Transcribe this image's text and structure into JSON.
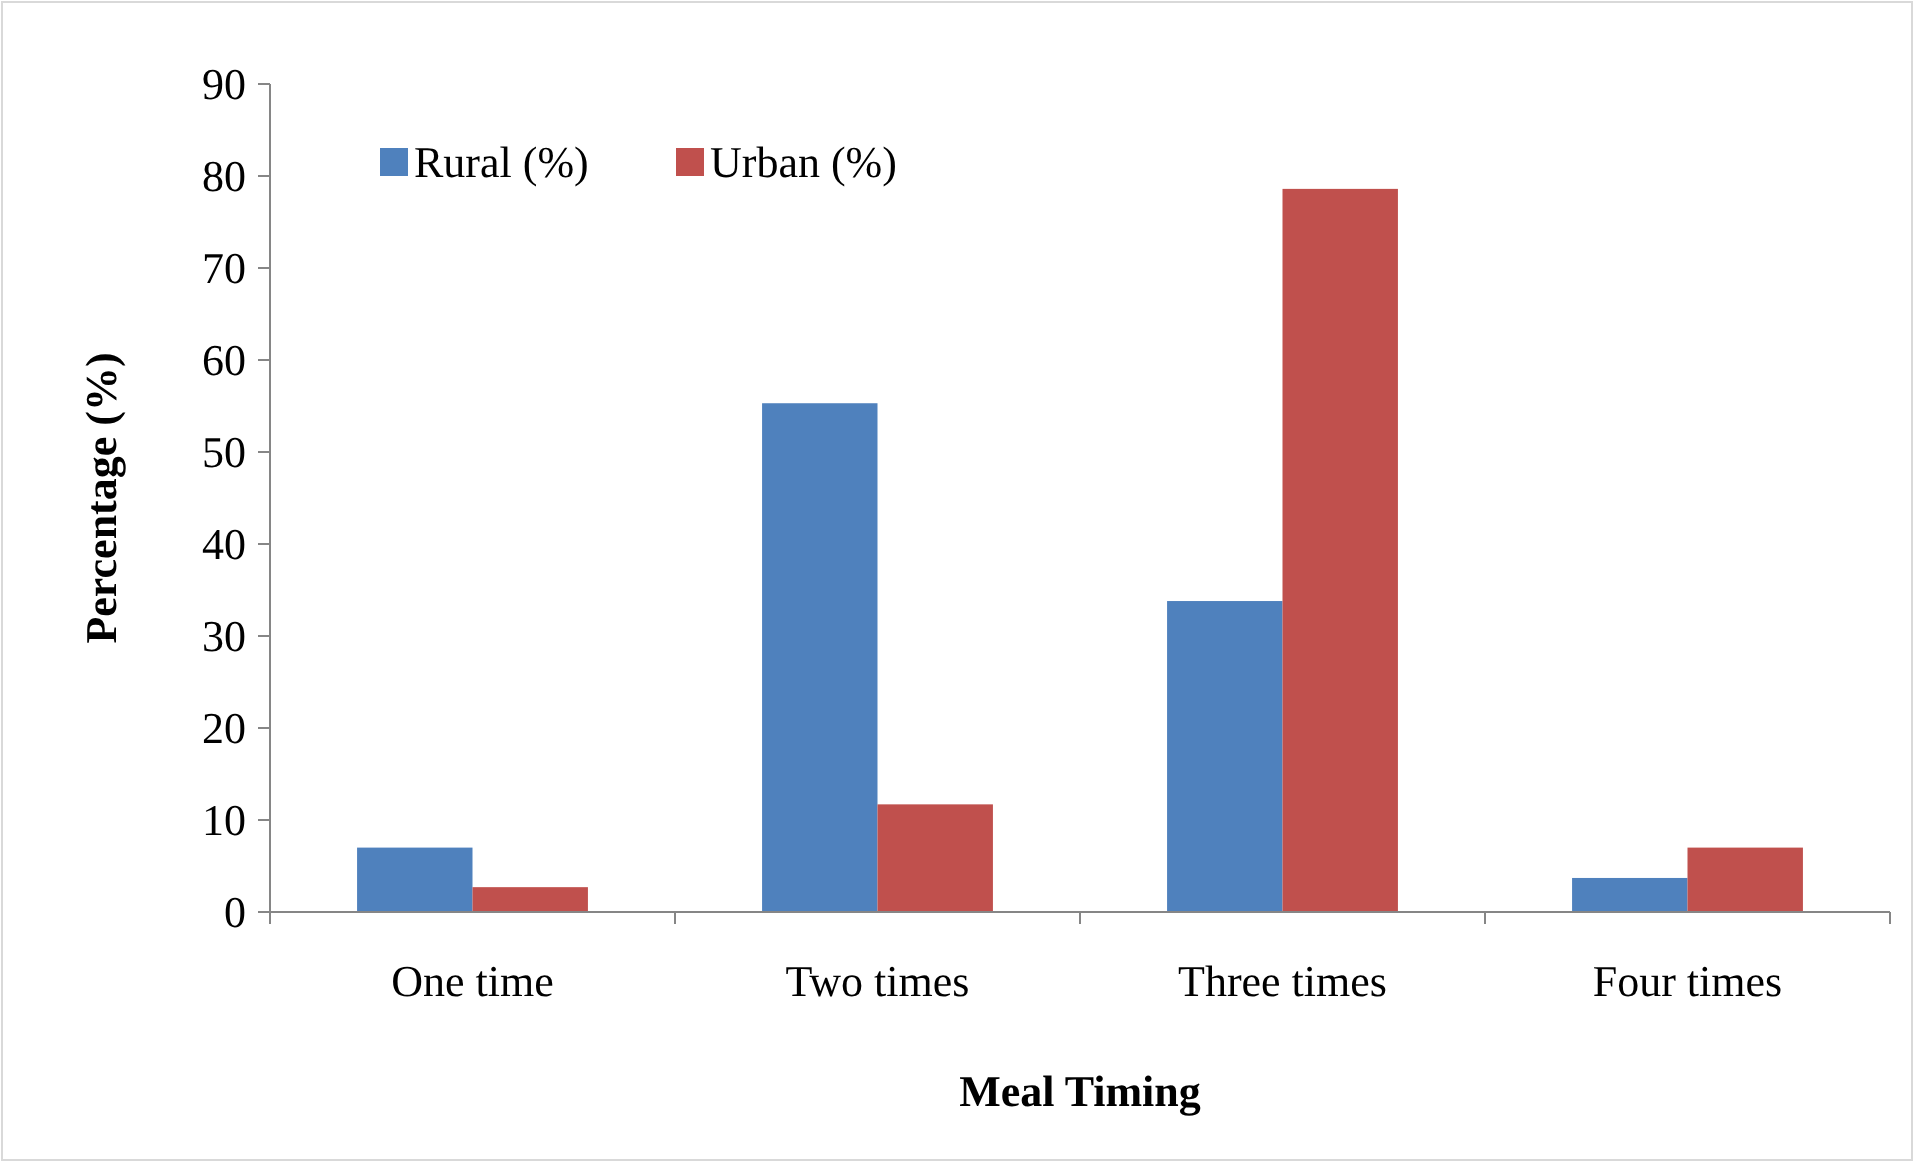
{
  "chart_data": {
    "type": "bar",
    "xlabel": "Meal Timing",
    "ylabel": "Percentage (%)",
    "categories": [
      "One time",
      "Two times",
      "Three times",
      "Four times"
    ],
    "series": [
      {
        "name": "Rural (%)",
        "color": "#4f81bd",
        "values": [
          7.0,
          55.3,
          33.8,
          3.7
        ]
      },
      {
        "name": "Urban (%)",
        "color": "#c0504d",
        "values": [
          2.7,
          11.7,
          78.6,
          7.0
        ]
      }
    ],
    "ylim": [
      0,
      90
    ],
    "yticks": [
      0,
      10,
      20,
      30,
      40,
      50,
      60,
      70,
      80,
      90
    ],
    "grid": false,
    "legend": "top left"
  }
}
